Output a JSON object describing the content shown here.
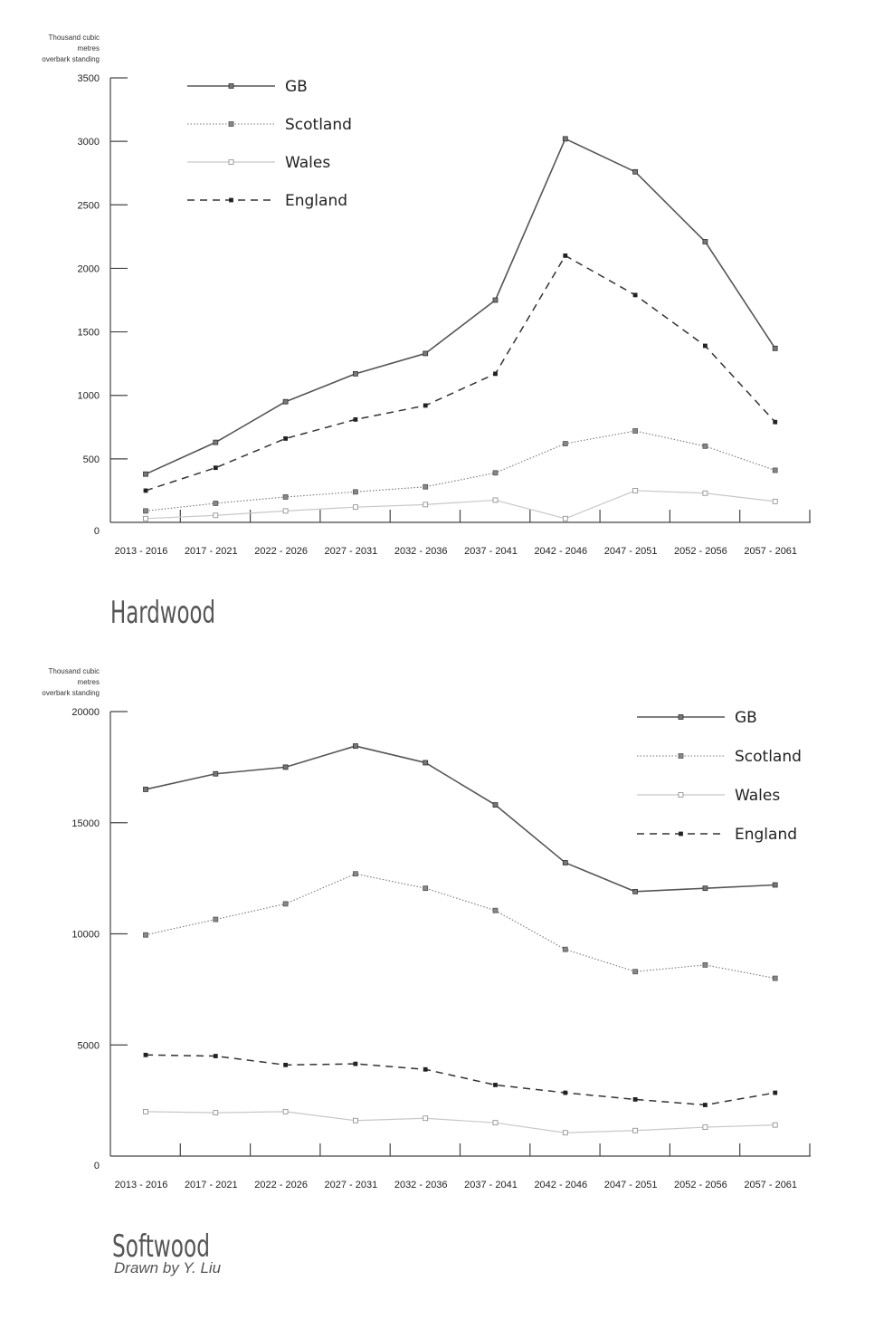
{
  "credit": "Drawn by Y. Liu",
  "chart_data": [
    {
      "type": "line",
      "title": "Hardwood",
      "ylabel": [
        "Thousand cubic",
        "metres",
        "overbark standing"
      ],
      "categories": [
        "2013 - 2016",
        "2017 - 2021",
        "2022 - 2026",
        "2027 - 2031",
        "2032 - 2036",
        "2037 - 2041",
        "2042 - 2046",
        "2047 - 2051",
        "2052 - 2056",
        "2057 - 2061"
      ],
      "ylim": [
        0,
        3500
      ],
      "yticks": [
        0,
        500,
        1000,
        1500,
        2000,
        2500,
        3000,
        3500
      ],
      "legend_position": "top-left",
      "series": [
        {
          "name": "GB",
          "style": "solid-dark",
          "values": [
            380,
            630,
            950,
            1170,
            1330,
            1750,
            3020,
            2760,
            2210,
            1370
          ]
        },
        {
          "name": "Scotland",
          "style": "dotted",
          "values": [
            90,
            150,
            200,
            240,
            280,
            390,
            620,
            720,
            600,
            410
          ]
        },
        {
          "name": "Wales",
          "style": "solid-light",
          "values": [
            30,
            55,
            90,
            120,
            140,
            175,
            30,
            250,
            230,
            165
          ]
        },
        {
          "name": "England",
          "style": "dashed",
          "values": [
            250,
            430,
            660,
            810,
            920,
            1170,
            2100,
            1790,
            1390,
            790
          ]
        }
      ]
    },
    {
      "type": "line",
      "title": "Softwood",
      "ylabel": [
        "Thousand cubic",
        "metres",
        "overbark standing"
      ],
      "categories": [
        "2013 - 2016",
        "2017 - 2021",
        "2022 - 2026",
        "2027 - 2031",
        "2032 - 2036",
        "2037 - 2041",
        "2042 - 2046",
        "2047 - 2051",
        "2052 - 2056",
        "2057 - 2061"
      ],
      "ylim": [
        0,
        20000
      ],
      "yticks": [
        0,
        5000,
        10000,
        15000,
        20000
      ],
      "legend_position": "top-right",
      "series": [
        {
          "name": "GB",
          "style": "solid-dark",
          "values": [
            16500,
            17200,
            17500,
            18450,
            17700,
            15800,
            13200,
            11900,
            12050,
            12200
          ]
        },
        {
          "name": "Scotland",
          "style": "dotted",
          "values": [
            9950,
            10650,
            11350,
            12700,
            12050,
            11050,
            9300,
            8300,
            8600,
            8000
          ]
        },
        {
          "name": "Wales",
          "style": "solid-light",
          "values": [
            2000,
            1950,
            2000,
            1600,
            1700,
            1500,
            1050,
            1150,
            1300,
            1400
          ]
        },
        {
          "name": "England",
          "style": "dashed",
          "values": [
            4550,
            4500,
            4100,
            4150,
            3900,
            3200,
            2850,
            2550,
            2300,
            2850
          ]
        }
      ]
    }
  ]
}
